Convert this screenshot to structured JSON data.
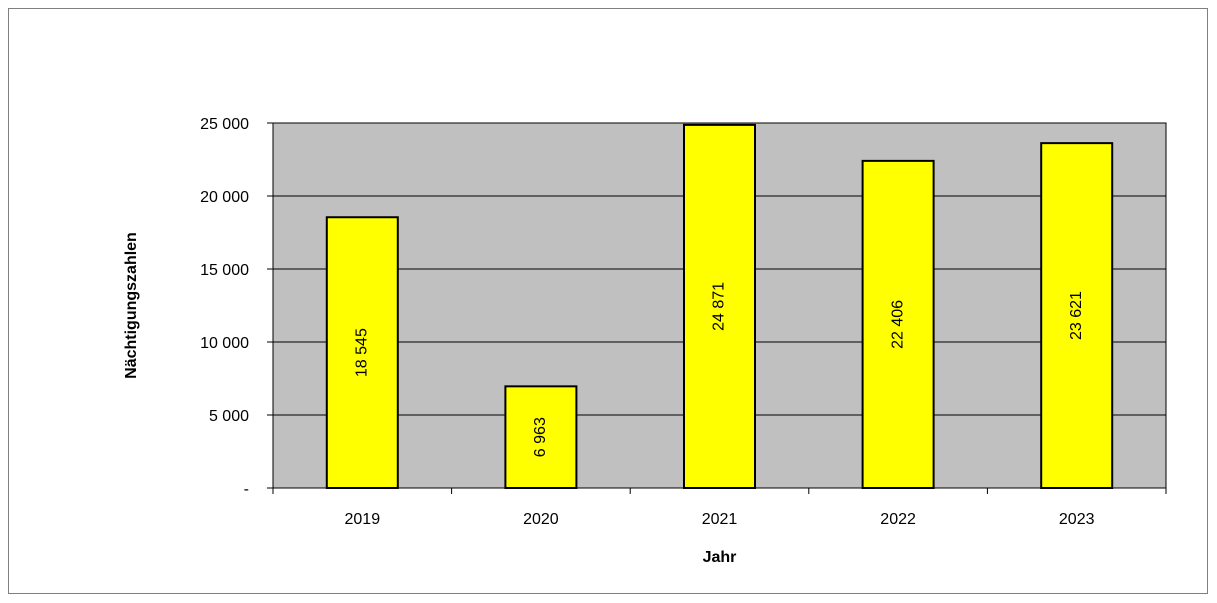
{
  "chart_data": {
    "type": "bar",
    "categories": [
      "2019",
      "2020",
      "2021",
      "2022",
      "2023"
    ],
    "values": [
      18545,
      6963,
      24871,
      22406,
      23621
    ],
    "data_labels": [
      "18 545",
      "6 963",
      "24 871",
      "22 406",
      "23 621"
    ],
    "title": "",
    "xlabel": "Jahr",
    "ylabel": "Nächtigungszahlen",
    "ylim": [
      0,
      25000
    ],
    "yticks": [
      0,
      5000,
      10000,
      15000,
      20000,
      25000
    ],
    "ytick_labels": [
      "-",
      "5 000",
      "10 000",
      "15 000",
      "20 000",
      "25 000"
    ],
    "grid": true,
    "legend": "none",
    "colors": {
      "bar_fill": "#ffff00",
      "bar_stroke": "#000000",
      "plot_background": "#c0c0c0",
      "gridline": "#000000"
    }
  }
}
